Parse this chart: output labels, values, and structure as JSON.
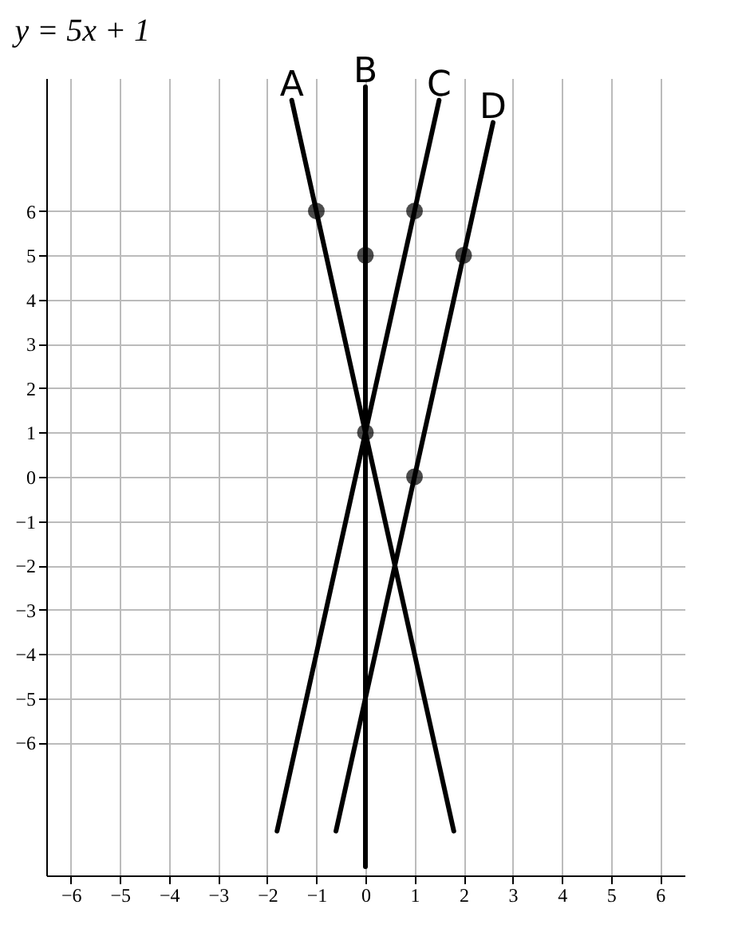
{
  "chart_data": {
    "type": "line",
    "title": "y = 5x + 1",
    "xlim": [
      -6.5,
      6.5
    ],
    "xticks": [
      -6,
      -5,
      -4,
      -3,
      -2,
      -1,
      0,
      1,
      2,
      3,
      4,
      5,
      6
    ],
    "ylim": [
      -9,
      9
    ],
    "yticks": [
      -6,
      -5,
      -4,
      -3,
      -2,
      -1,
      0,
      1,
      2,
      3,
      4,
      5,
      6
    ],
    "grid": true,
    "line_style": "solid",
    "series": [
      {
        "name": "A",
        "color": "#000000",
        "x": [
          -1.5,
          1.8
        ],
        "values": [
          8.5,
          -8
        ]
      },
      {
        "name": "B",
        "color": "#000000",
        "x": [
          0,
          0
        ],
        "values": [
          8.8,
          -8.8
        ]
      },
      {
        "name": "C",
        "color": "#000000",
        "x": [
          -1.8,
          1.5
        ],
        "values": [
          -8,
          8.5
        ]
      },
      {
        "name": "D",
        "color": "#000000",
        "x": [
          -0.6,
          2.6
        ],
        "values": [
          -8,
          8
        ]
      },
      {
        "type": "scatter",
        "marker": "circle",
        "color": "#000000",
        "x": [
          -1,
          0,
          0,
          1,
          1,
          2
        ],
        "values": [
          6,
          5,
          1,
          6,
          0,
          5
        ]
      }
    ]
  }
}
